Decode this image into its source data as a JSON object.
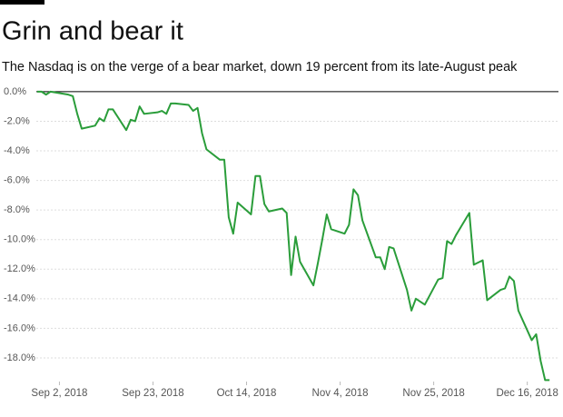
{
  "chart_data": {
    "type": "line",
    "title": "Grin and bear it",
    "subtitle": "The Nasdaq is on the verge of a bear market, down 19 percent from its late-August peak",
    "x": [
      "2018-08-28",
      "2018-08-29",
      "2018-08-30",
      "2018-08-31",
      "2018-09-04",
      "2018-09-05",
      "2018-09-06",
      "2018-09-07",
      "2018-09-10",
      "2018-09-11",
      "2018-09-12",
      "2018-09-13",
      "2018-09-14",
      "2018-09-17",
      "2018-09-18",
      "2018-09-19",
      "2018-09-20",
      "2018-09-21",
      "2018-09-24",
      "2018-09-25",
      "2018-09-26",
      "2018-09-27",
      "2018-09-28",
      "2018-10-01",
      "2018-10-02",
      "2018-10-03",
      "2018-10-04",
      "2018-10-05",
      "2018-10-08",
      "2018-10-09",
      "2018-10-10",
      "2018-10-11",
      "2018-10-12",
      "2018-10-15",
      "2018-10-16",
      "2018-10-17",
      "2018-10-18",
      "2018-10-19",
      "2018-10-22",
      "2018-10-23",
      "2018-10-24",
      "2018-10-25",
      "2018-10-26",
      "2018-10-29",
      "2018-10-30",
      "2018-10-31",
      "2018-11-01",
      "2018-11-02",
      "2018-11-05",
      "2018-11-06",
      "2018-11-07",
      "2018-11-08",
      "2018-11-09",
      "2018-11-12",
      "2018-11-13",
      "2018-11-14",
      "2018-11-15",
      "2018-11-16",
      "2018-11-19",
      "2018-11-20",
      "2018-11-21",
      "2018-11-23",
      "2018-11-26",
      "2018-11-27",
      "2018-11-28",
      "2018-11-29",
      "2018-11-30",
      "2018-12-03",
      "2018-12-04",
      "2018-12-06",
      "2018-12-07",
      "2018-12-10",
      "2018-12-11",
      "2018-12-12",
      "2018-12-13",
      "2018-12-14",
      "2018-12-17",
      "2018-12-18",
      "2018-12-19",
      "2018-12-20",
      "2018-12-21"
    ],
    "series": [
      {
        "name": "Nasdaq",
        "color": "#2a9d3a",
        "values": [
          0.0,
          0.0,
          -0.2,
          0.0,
          -0.2,
          -0.3,
          -1.5,
          -2.5,
          -2.3,
          -1.8,
          -2.0,
          -1.2,
          -1.2,
          -2.6,
          -1.9,
          -2.0,
          -1.0,
          -1.5,
          -1.4,
          -1.3,
          -1.5,
          -0.8,
          -0.8,
          -0.9,
          -1.3,
          -1.1,
          -2.8,
          -3.9,
          -4.6,
          -4.6,
          -8.5,
          -9.6,
          -7.5,
          -8.3,
          -5.7,
          -5.7,
          -7.6,
          -8.1,
          -7.9,
          -8.2,
          -12.4,
          -9.8,
          -11.5,
          -13.1,
          -11.6,
          -10.0,
          -8.3,
          -9.3,
          -9.6,
          -9.0,
          -6.6,
          -7.0,
          -8.7,
          -11.2,
          -11.2,
          -12.0,
          -10.5,
          -10.6,
          -13.4,
          -14.8,
          -14.0,
          -14.4,
          -12.7,
          -12.6,
          -10.1,
          -10.3,
          -9.7,
          -8.2,
          -11.7,
          -11.4,
          -14.1,
          -13.4,
          -13.3,
          -12.5,
          -12.8,
          -14.8,
          -16.8,
          -16.4,
          -18.2,
          -19.5,
          -19.5
        ]
      }
    ],
    "xlim": [
      "2018-08-27",
      "2018-12-23"
    ],
    "xticks": [
      {
        "value": "2018-09-02",
        "label": "Sep 2, 2018"
      },
      {
        "value": "2018-09-23",
        "label": "Sep 23, 2018"
      },
      {
        "value": "2018-10-14",
        "label": "Oct 14, 2018"
      },
      {
        "value": "2018-11-04",
        "label": "Nov 4, 2018"
      },
      {
        "value": "2018-11-25",
        "label": "Nov 25, 2018"
      },
      {
        "value": "2018-12-16",
        "label": "Dec 16, 2018"
      }
    ],
    "ylim": [
      -19.6,
      0.3
    ],
    "yticks": [
      {
        "value": 0,
        "label": "0.0%"
      },
      {
        "value": -2,
        "label": "-2.0%"
      },
      {
        "value": -4,
        "label": "-4.0%"
      },
      {
        "value": -6,
        "label": "-6.0%"
      },
      {
        "value": -8,
        "label": "-8.0%"
      },
      {
        "value": -10,
        "label": "-10.0%"
      },
      {
        "value": -12,
        "label": "-12.0%"
      },
      {
        "value": -14,
        "label": "-14.0%"
      },
      {
        "value": -16,
        "label": "-16.0%"
      },
      {
        "value": -18,
        "label": "-18.0%"
      }
    ],
    "grid": true
  }
}
